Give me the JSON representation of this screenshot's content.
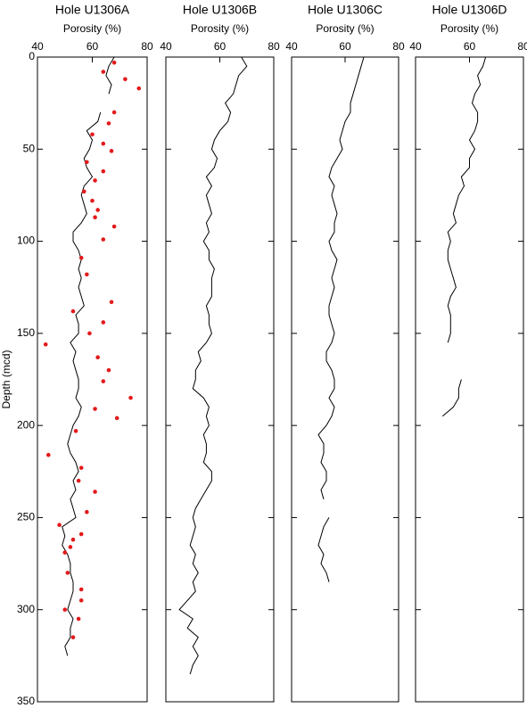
{
  "chart_data": [
    {
      "type": "line",
      "title": "Hole U1306A",
      "xlabel": "Porosity (%)",
      "ylabel": "Depth (mcd)",
      "xlim": [
        40,
        80
      ],
      "xticks": [
        40,
        60,
        80
      ],
      "ylim": [
        0,
        350
      ],
      "yticks": [
        0,
        50,
        100,
        150,
        200,
        250,
        300,
        350
      ],
      "color": "#000000",
      "depth": [
        0,
        5,
        10,
        15,
        20,
        25,
        30,
        35,
        40,
        45,
        50,
        55,
        60,
        65,
        70,
        75,
        80,
        85,
        90,
        95,
        100,
        105,
        110,
        115,
        120,
        125,
        130,
        135,
        140,
        145,
        150,
        155,
        160,
        165,
        170,
        175,
        180,
        185,
        190,
        195,
        200,
        205,
        210,
        215,
        220,
        225,
        230,
        235,
        240,
        245,
        250,
        255,
        260,
        265,
        270,
        275,
        280,
        285,
        290,
        295,
        300,
        305,
        310,
        315,
        320,
        325
      ],
      "values": [
        68,
        66,
        65,
        67,
        66,
        null,
        63,
        62,
        58,
        60,
        59,
        57,
        58,
        60,
        57,
        56,
        57,
        58,
        56,
        53,
        53,
        55,
        56,
        55,
        56,
        55,
        56,
        57,
        54,
        55,
        55,
        52,
        54,
        53,
        54,
        55,
        55,
        54,
        56,
        55,
        53,
        52,
        51,
        52,
        54,
        55,
        53,
        54,
        52,
        53,
        54,
        49,
        50,
        49,
        51,
        52,
        52,
        53,
        53,
        52,
        51,
        53,
        52,
        52,
        50,
        51
      ],
      "points": {
        "color": "#e31a1c",
        "depth": [
          3,
          8,
          12,
          17,
          30,
          36,
          42,
          47,
          51,
          57,
          62,
          67,
          73,
          78,
          83,
          87,
          92,
          99,
          109,
          118,
          133,
          138,
          144,
          150,
          156,
          163,
          170,
          176,
          185,
          191,
          196,
          203,
          216,
          223,
          230,
          236,
          247,
          254,
          259,
          262,
          266,
          269,
          280,
          289,
          295,
          300,
          305,
          315
        ],
        "values": [
          68,
          64,
          72,
          77,
          68,
          66,
          60,
          64,
          67,
          58,
          64,
          61,
          57,
          60,
          62,
          61,
          68,
          64,
          56,
          58,
          67,
          53,
          64,
          59,
          43,
          62,
          66,
          64,
          74,
          61,
          69,
          54,
          44,
          56,
          55,
          61,
          58,
          48,
          56,
          53,
          52,
          50,
          51,
          56,
          56,
          50,
          55,
          53
        ]
      }
    },
    {
      "type": "line",
      "title": "Hole U1306B",
      "xlabel": "Porosity (%)",
      "xlim": [
        40,
        80
      ],
      "xticks": [
        40,
        60,
        80
      ],
      "ylim": [
        0,
        350
      ],
      "yticks": [
        0,
        50,
        100,
        150,
        200,
        250,
        300,
        350
      ],
      "color": "#000000",
      "depth": [
        0,
        5,
        10,
        15,
        20,
        25,
        30,
        35,
        40,
        45,
        50,
        55,
        60,
        65,
        70,
        75,
        80,
        85,
        90,
        95,
        100,
        105,
        110,
        115,
        120,
        125,
        130,
        135,
        140,
        145,
        150,
        155,
        160,
        165,
        170,
        175,
        180,
        185,
        190,
        195,
        200,
        205,
        210,
        215,
        220,
        225,
        230,
        235,
        240,
        245,
        250,
        255,
        260,
        265,
        270,
        275,
        280,
        285,
        290,
        295,
        300,
        305,
        310,
        315,
        320,
        325,
        330,
        335
      ],
      "values": [
        68,
        70,
        67,
        66,
        65,
        62,
        64,
        63,
        60,
        58,
        57,
        59,
        58,
        55,
        57,
        55,
        56,
        57,
        55,
        56,
        54,
        56,
        56,
        58,
        57,
        57,
        57,
        55,
        56,
        56,
        57,
        55,
        52,
        53,
        51,
        51,
        50,
        54,
        56,
        55,
        56,
        54,
        55,
        55,
        54,
        57,
        57,
        55,
        53,
        51,
        50,
        51,
        50,
        49,
        51,
        50,
        52,
        50,
        51,
        48,
        45,
        50,
        48,
        52,
        50,
        52,
        50,
        49
      ]
    },
    {
      "type": "line",
      "title": "Hole U1306C",
      "xlabel": "Porosity (%)",
      "xlim": [
        40,
        80
      ],
      "xticks": [
        40,
        60,
        80
      ],
      "ylim": [
        0,
        350
      ],
      "yticks": [
        0,
        50,
        100,
        150,
        200,
        250,
        300,
        350
      ],
      "color": "#000000",
      "depth": [
        0,
        5,
        10,
        15,
        20,
        25,
        30,
        35,
        40,
        45,
        50,
        55,
        60,
        65,
        70,
        75,
        80,
        85,
        90,
        95,
        100,
        105,
        110,
        115,
        120,
        125,
        130,
        135,
        140,
        145,
        150,
        155,
        160,
        165,
        170,
        175,
        180,
        185,
        190,
        195,
        200,
        205,
        210,
        215,
        220,
        225,
        230,
        235,
        240,
        245,
        250,
        255,
        260,
        265,
        270,
        275,
        280,
        285
      ],
      "values": [
        67,
        66,
        65,
        64,
        63,
        62,
        62,
        60,
        59,
        58,
        59,
        57,
        55,
        54,
        56,
        55,
        56,
        57,
        56,
        56,
        54,
        55,
        57,
        56,
        55,
        56,
        55,
        54,
        54,
        55,
        56,
        55,
        53,
        53,
        55,
        56,
        56,
        54,
        56,
        55,
        53,
        50,
        52,
        52,
        51,
        53,
        53,
        51,
        52,
        null,
        54,
        52,
        51,
        50,
        52,
        51,
        53,
        54
      ]
    },
    {
      "type": "line",
      "title": "Hole U1306D",
      "xlabel": "Porosity (%)",
      "xlim": [
        40,
        80
      ],
      "xticks": [
        40,
        60,
        80
      ],
      "ylim": [
        0,
        350
      ],
      "yticks": [
        0,
        50,
        100,
        150,
        200,
        250,
        300,
        350
      ],
      "color": "#000000",
      "depth": [
        0,
        5,
        10,
        15,
        20,
        25,
        30,
        35,
        40,
        45,
        50,
        55,
        60,
        65,
        70,
        75,
        80,
        85,
        90,
        95,
        100,
        105,
        110,
        115,
        120,
        125,
        130,
        135,
        140,
        145,
        150,
        155,
        160,
        165,
        170,
        175,
        180,
        185,
        190,
        195
      ],
      "values": [
        66,
        65,
        63,
        64,
        62,
        61,
        63,
        63,
        62,
        60,
        62,
        60,
        60,
        57,
        58,
        56,
        55,
        54,
        55,
        52,
        53,
        52,
        52,
        53,
        54,
        55,
        53,
        52,
        53,
        53,
        53,
        52,
        null,
        null,
        null,
        57,
        56,
        56,
        54,
        50
      ]
    }
  ]
}
